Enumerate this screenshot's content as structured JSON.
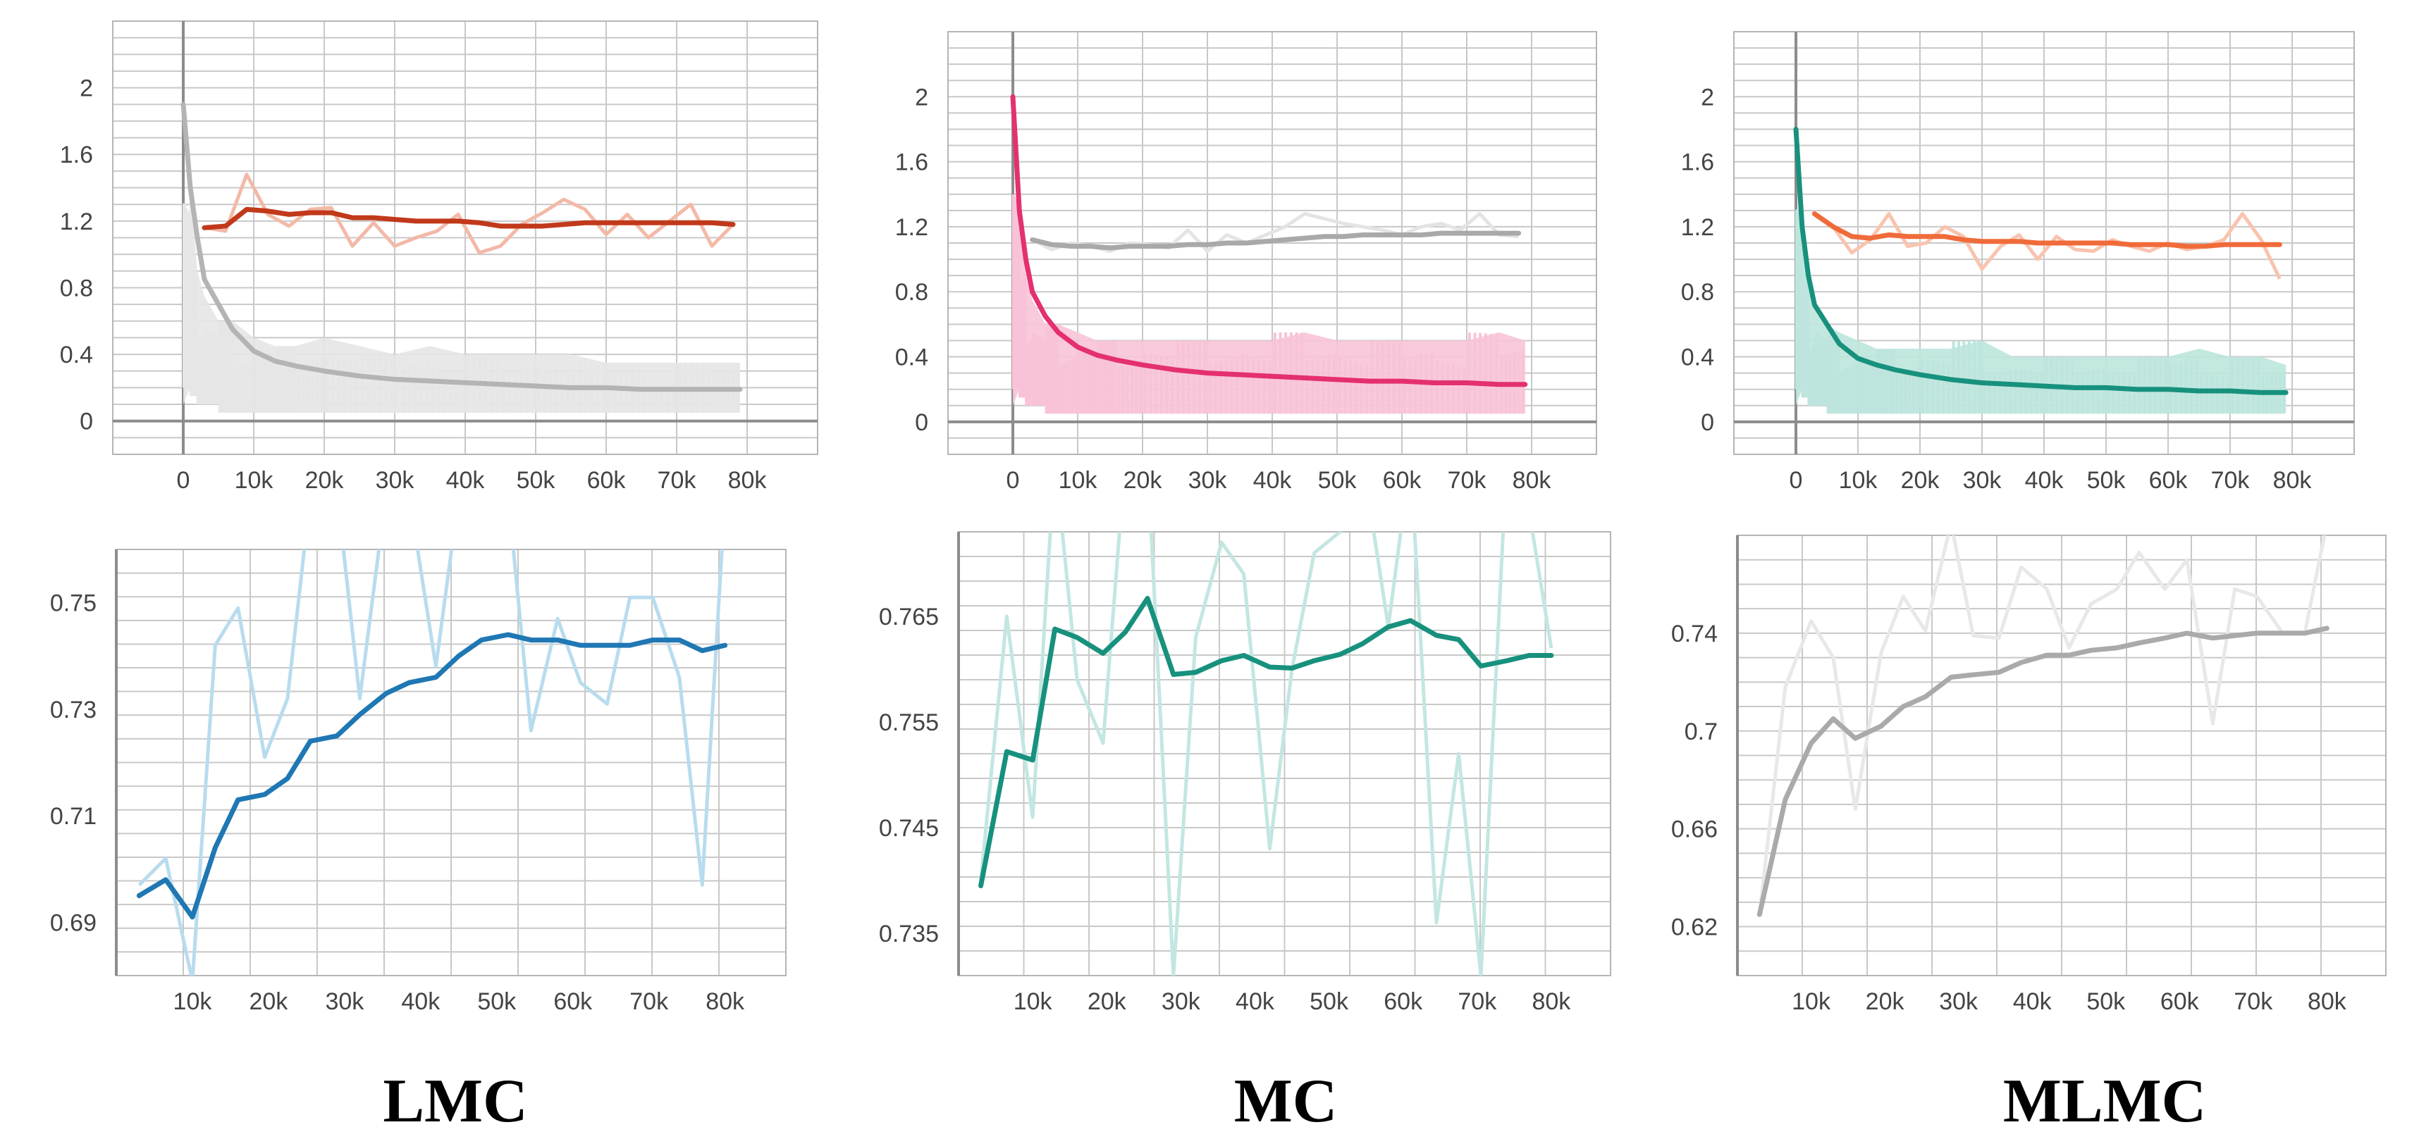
{
  "captions": [
    "LMC",
    "MC",
    "MLMC"
  ],
  "chart_data": [
    {
      "type": "line",
      "panel": "LMC-loss",
      "xlim": [
        -10000,
        90000
      ],
      "ylim": [
        -0.2,
        2.4
      ],
      "x_ticks": [
        "0",
        "10k",
        "20k",
        "30k",
        "40k",
        "50k",
        "60k",
        "70k",
        "80k"
      ],
      "y_ticks": [
        "0",
        "0.4",
        "0.8",
        "1.2",
        "1.6",
        "2"
      ],
      "grid": true,
      "series": [
        {
          "role": "validation",
          "color": "#c1391a",
          "raw_color": "#f3b9a7",
          "x": [
            3000,
            6000,
            9000,
            12000,
            15000,
            18000,
            21000,
            24000,
            27000,
            30000,
            33000,
            36000,
            39000,
            42000,
            45000,
            48000,
            51000,
            54000,
            57000,
            60000,
            63000,
            66000,
            69000,
            72000,
            75000,
            78000
          ],
          "raw": [
            1.16,
            1.14,
            1.48,
            1.24,
            1.17,
            1.27,
            1.28,
            1.05,
            1.19,
            1.05,
            1.1,
            1.14,
            1.24,
            1.01,
            1.05,
            1.18,
            1.25,
            1.33,
            1.27,
            1.12,
            1.24,
            1.1,
            1.2,
            1.3,
            1.05,
            1.18
          ],
          "smoothed": [
            1.16,
            1.17,
            1.27,
            1.26,
            1.24,
            1.25,
            1.25,
            1.22,
            1.22,
            1.21,
            1.2,
            1.2,
            1.2,
            1.19,
            1.17,
            1.17,
            1.17,
            1.18,
            1.19,
            1.19,
            1.19,
            1.19,
            1.19,
            1.19,
            1.19,
            1.18
          ]
        },
        {
          "role": "train",
          "color": "#b4b4b4",
          "raw_color": "#e6e6e6",
          "x": [
            0,
            1000,
            2000,
            3000,
            5000,
            7000,
            10000,
            13000,
            16000,
            20000,
            25000,
            30000,
            35000,
            40000,
            45000,
            50000,
            55000,
            60000,
            65000,
            70000,
            75000,
            79000
          ],
          "raw_band": [
            0.5,
            1.4,
            0.9,
            0.75,
            0.6,
            0.6,
            0.5,
            0.45,
            0.45,
            0.5,
            0.45,
            0.4,
            0.45,
            0.4,
            0.4,
            0.4,
            0.4,
            0.35,
            0.35,
            0.35,
            0.35,
            0.35
          ],
          "raw_low": [
            0.1,
            0.2,
            0.15,
            0.1,
            0.1,
            0.05,
            0.05,
            0.05,
            0.05,
            0.05,
            0.05,
            0.05,
            0.05,
            0.05,
            0.05,
            0.05,
            0.05,
            0.05,
            0.05,
            0.05,
            0.05,
            0.05
          ],
          "smoothed": [
            1.9,
            1.4,
            1.1,
            0.85,
            0.7,
            0.55,
            0.42,
            0.36,
            0.33,
            0.3,
            0.27,
            0.25,
            0.24,
            0.23,
            0.22,
            0.21,
            0.2,
            0.2,
            0.19,
            0.19,
            0.19,
            0.19
          ]
        }
      ]
    },
    {
      "type": "line",
      "panel": "MC-loss",
      "xlim": [
        -10000,
        90000
      ],
      "ylim": [
        -0.2,
        2.4
      ],
      "x_ticks": [
        "0",
        "10k",
        "20k",
        "30k",
        "40k",
        "50k",
        "60k",
        "70k",
        "80k"
      ],
      "y_ticks": [
        "0",
        "0.4",
        "0.8",
        "1.2",
        "1.6",
        "2"
      ],
      "grid": true,
      "series": [
        {
          "role": "validation",
          "color": "#a9a9a9",
          "raw_color": "#e4e4e4",
          "x": [
            3000,
            6000,
            9000,
            12000,
            15000,
            18000,
            21000,
            24000,
            27000,
            30000,
            33000,
            36000,
            39000,
            42000,
            45000,
            48000,
            51000,
            54000,
            57000,
            60000,
            63000,
            66000,
            69000,
            72000,
            75000,
            78000
          ],
          "raw": [
            1.12,
            1.06,
            1.1,
            1.08,
            1.05,
            1.1,
            1.09,
            1.07,
            1.18,
            1.05,
            1.15,
            1.1,
            1.15,
            1.2,
            1.28,
            1.25,
            1.22,
            1.2,
            1.18,
            1.15,
            1.2,
            1.22,
            1.18,
            1.28,
            1.15,
            1.14
          ],
          "smoothed": [
            1.12,
            1.09,
            1.08,
            1.08,
            1.07,
            1.08,
            1.08,
            1.08,
            1.09,
            1.09,
            1.1,
            1.1,
            1.11,
            1.12,
            1.13,
            1.14,
            1.14,
            1.15,
            1.15,
            1.15,
            1.15,
            1.16,
            1.16,
            1.16,
            1.16,
            1.16
          ]
        },
        {
          "role": "train",
          "color": "#e4306f",
          "raw_color": "#f8c3d8",
          "x": [
            0,
            1000,
            2000,
            3000,
            5000,
            7000,
            10000,
            13000,
            16000,
            20000,
            25000,
            30000,
            35000,
            40000,
            45000,
            50000,
            55000,
            60000,
            65000,
            70000,
            75000,
            79000
          ],
          "raw_band": [
            0.5,
            1.5,
            0.9,
            0.75,
            0.6,
            0.6,
            0.55,
            0.5,
            0.5,
            0.5,
            0.5,
            0.5,
            0.5,
            0.5,
            0.55,
            0.5,
            0.5,
            0.5,
            0.5,
            0.5,
            0.55,
            0.5
          ],
          "raw_low": [
            0.1,
            0.2,
            0.15,
            0.1,
            0.1,
            0.05,
            0.05,
            0.05,
            0.05,
            0.05,
            0.05,
            0.05,
            0.05,
            0.05,
            0.05,
            0.05,
            0.05,
            0.05,
            0.05,
            0.05,
            0.05,
            0.05
          ],
          "smoothed": [
            2.0,
            1.3,
            1.0,
            0.8,
            0.65,
            0.55,
            0.46,
            0.41,
            0.38,
            0.35,
            0.32,
            0.3,
            0.29,
            0.28,
            0.27,
            0.26,
            0.25,
            0.25,
            0.24,
            0.24,
            0.23,
            0.23
          ]
        }
      ]
    },
    {
      "type": "line",
      "panel": "MLMC-loss",
      "xlim": [
        -10000,
        90000
      ],
      "ylim": [
        -0.2,
        2.4
      ],
      "x_ticks": [
        "0",
        "10k",
        "20k",
        "30k",
        "40k",
        "50k",
        "60k",
        "70k",
        "80k"
      ],
      "y_ticks": [
        "0",
        "0.4",
        "0.8",
        "1.2",
        "1.6",
        "2"
      ],
      "grid": true,
      "series": [
        {
          "role": "validation",
          "color": "#f06b3a",
          "raw_color": "#f9c3ad",
          "x": [
            3000,
            6000,
            9000,
            12000,
            15000,
            18000,
            21000,
            24000,
            27000,
            30000,
            33000,
            36000,
            39000,
            42000,
            45000,
            48000,
            51000,
            54000,
            57000,
            60000,
            63000,
            66000,
            69000,
            72000,
            75000,
            78000
          ],
          "raw": [
            1.28,
            1.2,
            1.04,
            1.12,
            1.28,
            1.08,
            1.1,
            1.2,
            1.14,
            0.94,
            1.08,
            1.15,
            1.0,
            1.14,
            1.06,
            1.05,
            1.12,
            1.08,
            1.05,
            1.1,
            1.06,
            1.08,
            1.12,
            1.28,
            1.12,
            0.88
          ],
          "smoothed": [
            1.28,
            1.2,
            1.14,
            1.13,
            1.15,
            1.14,
            1.14,
            1.14,
            1.12,
            1.11,
            1.11,
            1.11,
            1.1,
            1.1,
            1.1,
            1.1,
            1.1,
            1.09,
            1.09,
            1.09,
            1.08,
            1.08,
            1.09,
            1.09,
            1.09,
            1.09
          ]
        },
        {
          "role": "train",
          "color": "#17917d",
          "raw_color": "#bde5dd",
          "x": [
            0,
            1000,
            2000,
            3000,
            5000,
            7000,
            10000,
            13000,
            16000,
            20000,
            25000,
            30000,
            35000,
            40000,
            45000,
            50000,
            55000,
            60000,
            65000,
            70000,
            75000,
            79000
          ],
          "raw_band": [
            0.5,
            1.4,
            0.9,
            0.7,
            0.6,
            0.55,
            0.5,
            0.45,
            0.45,
            0.45,
            0.45,
            0.5,
            0.4,
            0.4,
            0.4,
            0.4,
            0.4,
            0.4,
            0.45,
            0.4,
            0.4,
            0.35
          ],
          "raw_low": [
            0.1,
            0.2,
            0.15,
            0.1,
            0.1,
            0.05,
            0.05,
            0.05,
            0.05,
            0.05,
            0.05,
            0.05,
            0.05,
            0.05,
            0.05,
            0.05,
            0.05,
            0.05,
            0.05,
            0.05,
            0.05,
            0.05
          ],
          "smoothed": [
            1.8,
            1.2,
            0.9,
            0.72,
            0.6,
            0.48,
            0.39,
            0.35,
            0.32,
            0.29,
            0.26,
            0.24,
            0.23,
            0.22,
            0.21,
            0.21,
            0.2,
            0.2,
            0.19,
            0.19,
            0.18,
            0.18
          ]
        }
      ]
    },
    {
      "type": "line",
      "panel": "LMC-accuracy",
      "xlim": [
        0,
        88000
      ],
      "ylim": [
        0.68,
        0.76
      ],
      "x_ticks": [
        "10k",
        "20k",
        "30k",
        "40k",
        "50k",
        "60k",
        "70k",
        "80k"
      ],
      "y_ticks": [
        "0.69",
        "0.71",
        "0.73",
        "0.75"
      ],
      "grid": true,
      "series": [
        {
          "color": "#1f77b4",
          "raw_color": "#b8dcee",
          "x": [
            3000,
            6500,
            10000,
            13000,
            16000,
            19500,
            22500,
            25500,
            29000,
            32000,
            35500,
            38500,
            42000,
            45000,
            48000,
            51500,
            54500,
            58000,
            61000,
            64500,
            67500,
            70500,
            74000,
            77000,
            80000
          ],
          "raw": [
            0.697,
            0.702,
            0.679,
            0.742,
            0.749,
            0.721,
            0.732,
            0.77,
            0.771,
            0.732,
            0.771,
            0.77,
            0.738,
            0.77,
            0.77,
            0.77,
            0.726,
            0.747,
            0.735,
            0.731,
            0.751,
            0.751,
            0.736,
            0.697,
            0.77
          ],
          "smoothed": [
            0.695,
            0.698,
            0.691,
            0.704,
            0.713,
            0.714,
            0.717,
            0.724,
            0.725,
            0.729,
            0.733,
            0.735,
            0.736,
            0.74,
            0.743,
            0.744,
            0.743,
            0.743,
            0.742,
            0.742,
            0.742,
            0.743,
            0.743,
            0.741,
            0.742
          ]
        }
      ]
    },
    {
      "type": "line",
      "panel": "MC-accuracy",
      "xlim": [
        0,
        88000
      ],
      "ylim": [
        0.731,
        0.773
      ],
      "x_ticks": [
        "10k",
        "20k",
        "30k",
        "40k",
        "50k",
        "60k",
        "70k",
        "80k"
      ],
      "y_ticks": [
        "0.735",
        "0.745",
        "0.755",
        "0.765"
      ],
      "grid": true,
      "series": [
        {
          "color": "#17917d",
          "raw_color": "#c3e6e2",
          "x": [
            3000,
            6500,
            10000,
            13000,
            16000,
            19500,
            22500,
            25500,
            29000,
            32000,
            35500,
            38500,
            42000,
            45000,
            48000,
            51500,
            54500,
            58000,
            61000,
            64500,
            67500,
            70500,
            74000,
            77000,
            80000
          ],
          "raw": [
            0.74,
            0.765,
            0.746,
            0.78,
            0.759,
            0.753,
            0.78,
            0.78,
            0.731,
            0.763,
            0.772,
            0.769,
            0.743,
            0.76,
            0.771,
            0.773,
            0.78,
            0.764,
            0.78,
            0.736,
            0.752,
            0.731,
            0.78,
            0.775,
            0.762
          ],
          "smoothed": [
            0.7395,
            0.7522,
            0.7514,
            0.7638,
            0.763,
            0.7615,
            0.7635,
            0.7667,
            0.7595,
            0.7597,
            0.7608,
            0.7613,
            0.7602,
            0.7601,
            0.7608,
            0.7614,
            0.7624,
            0.764,
            0.7646,
            0.7632,
            0.7628,
            0.7603,
            0.7608,
            0.7613,
            0.7613
          ]
        }
      ]
    },
    {
      "type": "line",
      "panel": "MLMC-accuracy",
      "xlim": [
        0,
        88000
      ],
      "ylim": [
        0.6,
        0.78
      ],
      "x_ticks": [
        "10k",
        "20k",
        "30k",
        "40k",
        "50k",
        "60k",
        "70k",
        "80k"
      ],
      "y_ticks": [
        "0.62",
        "0.66",
        "0.7",
        "0.74"
      ],
      "grid": true,
      "series": [
        {
          "color": "#aaaaaa",
          "raw_color": "#e8e8e8",
          "x": [
            3000,
            6500,
            10000,
            13000,
            16000,
            19500,
            22500,
            25500,
            29000,
            32000,
            35500,
            38500,
            42000,
            45000,
            48000,
            51500,
            54500,
            58000,
            61000,
            64500,
            67500,
            70500,
            74000,
            77000,
            80000
          ],
          "raw": [
            0.625,
            0.718,
            0.745,
            0.73,
            0.668,
            0.732,
            0.755,
            0.741,
            0.785,
            0.739,
            0.738,
            0.767,
            0.758,
            0.734,
            0.752,
            0.758,
            0.773,
            0.758,
            0.77,
            0.703,
            0.758,
            0.755,
            0.74,
            0.74,
            0.785
          ],
          "smoothed": [
            0.625,
            0.672,
            0.695,
            0.705,
            0.697,
            0.702,
            0.71,
            0.714,
            0.722,
            0.723,
            0.724,
            0.728,
            0.731,
            0.731,
            0.733,
            0.734,
            0.736,
            0.738,
            0.74,
            0.738,
            0.739,
            0.74,
            0.74,
            0.74,
            0.742
          ]
        }
      ]
    }
  ]
}
